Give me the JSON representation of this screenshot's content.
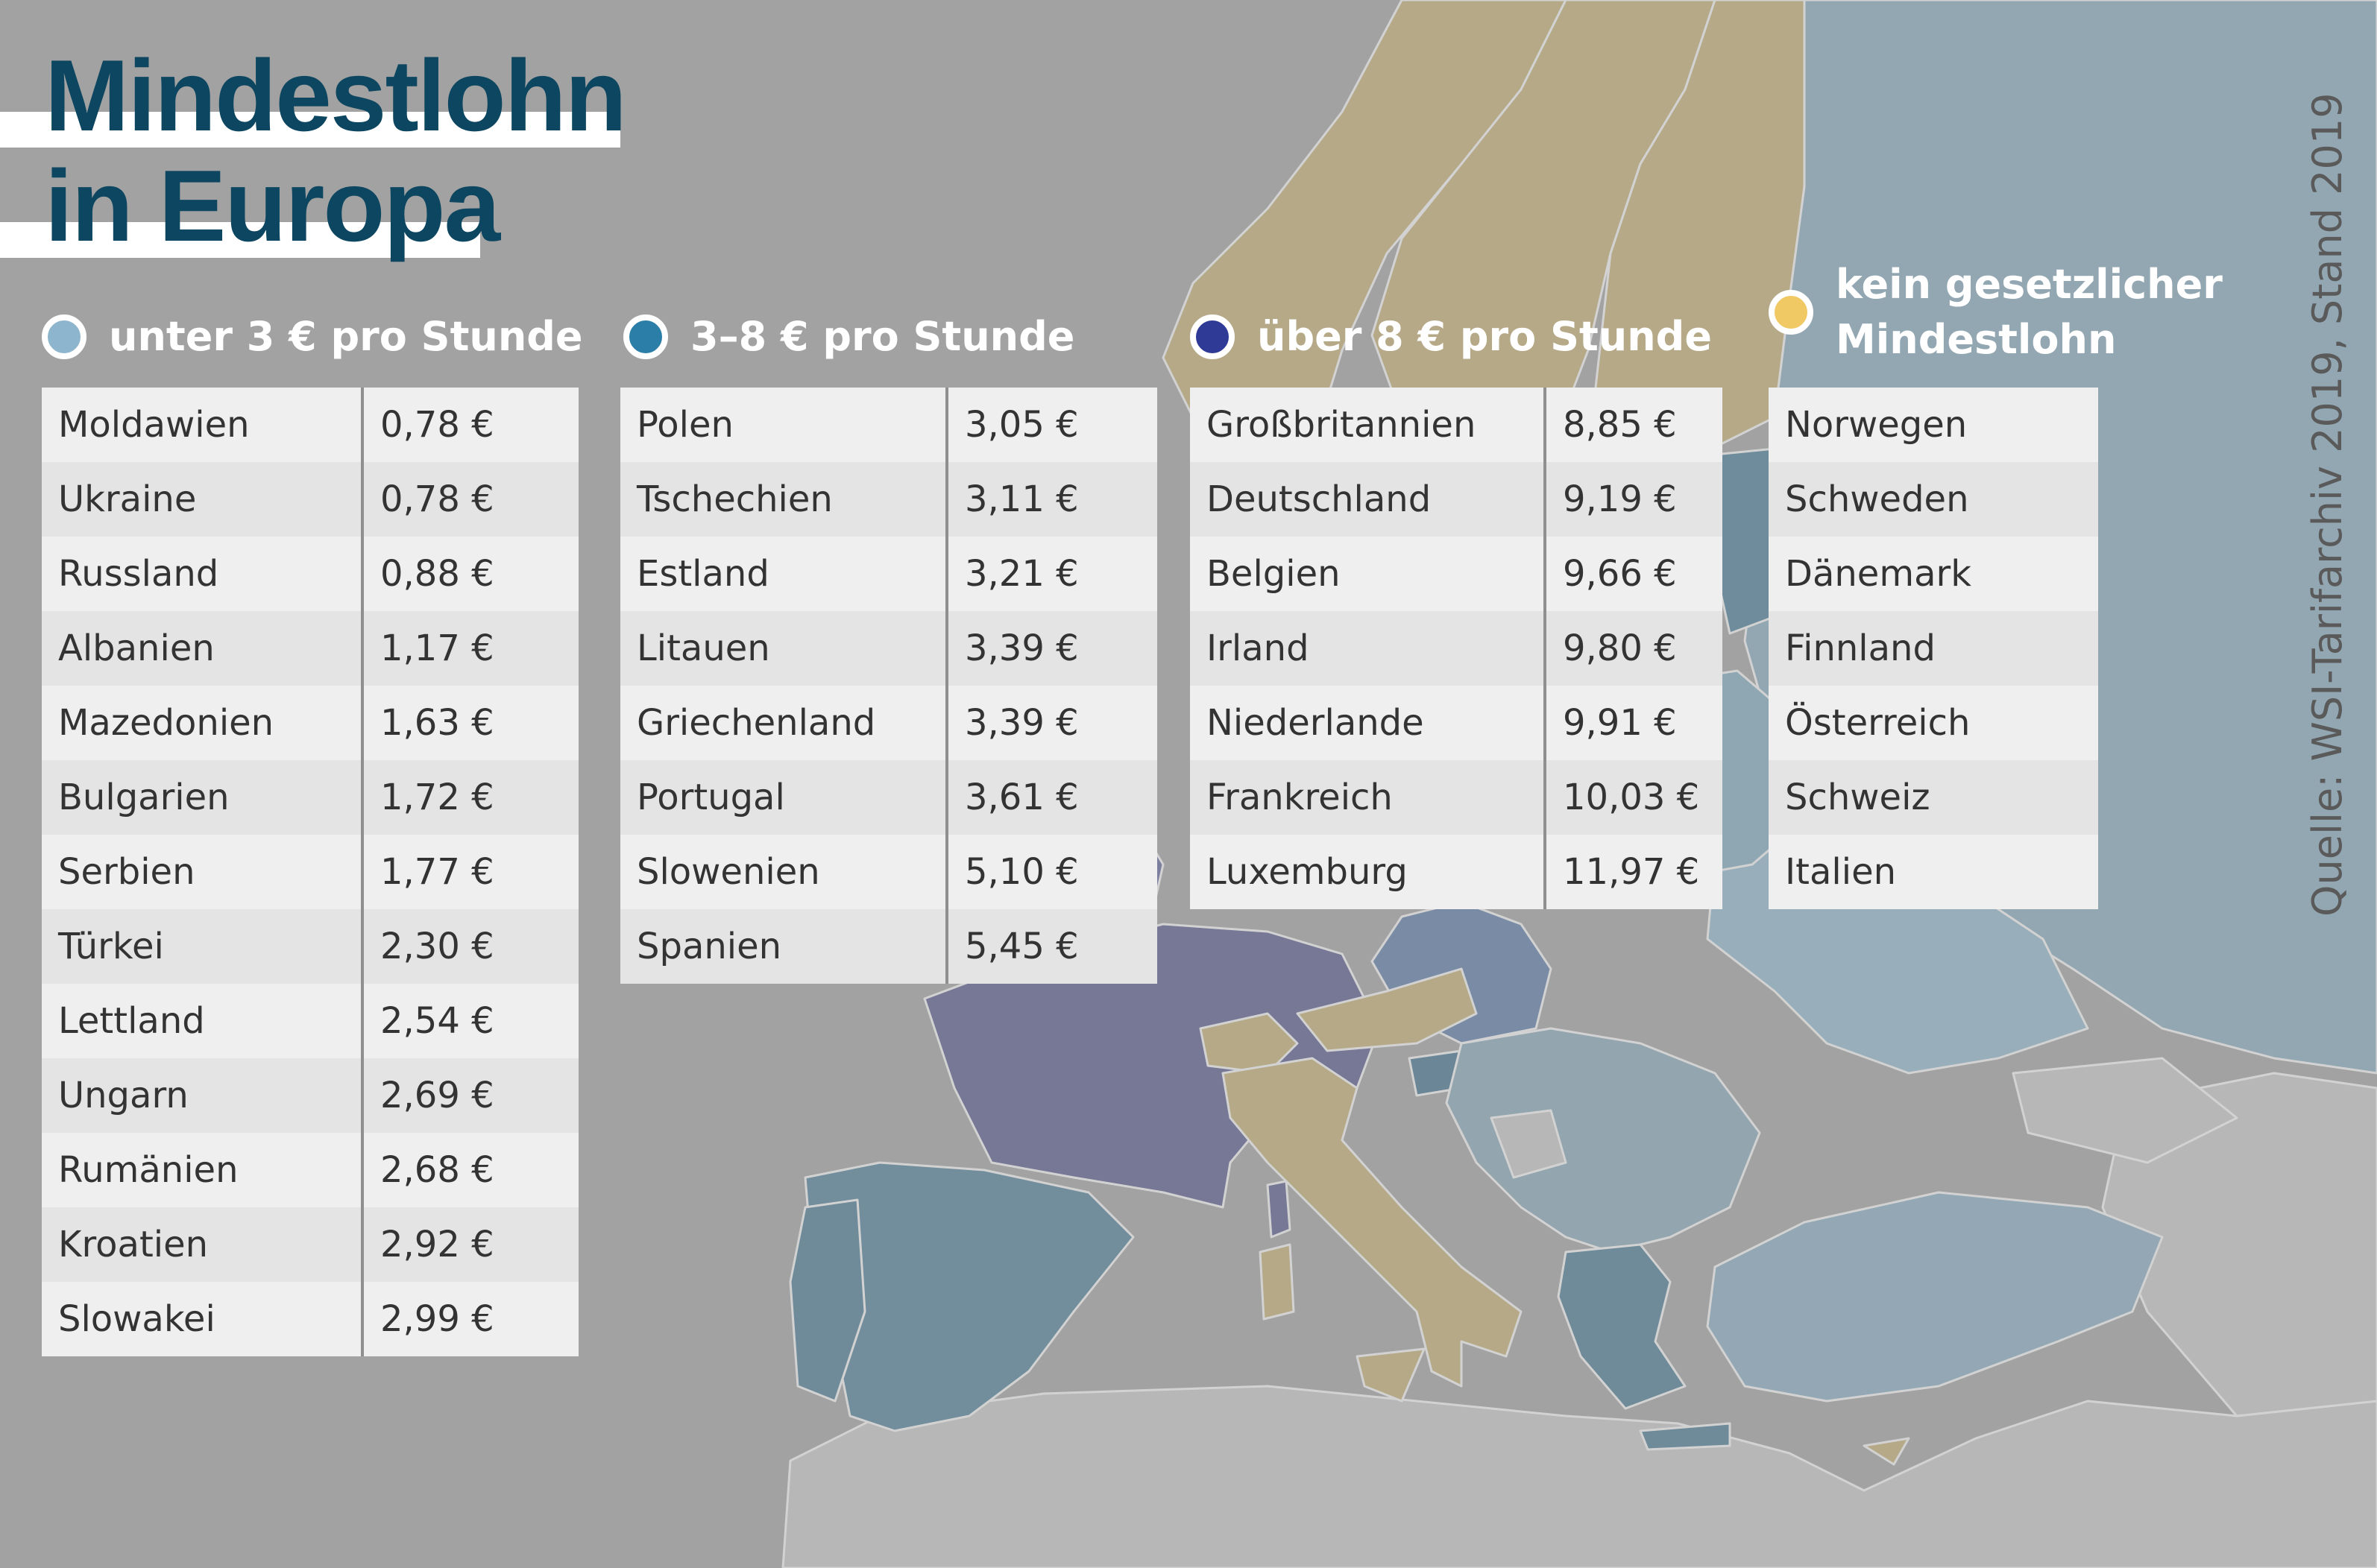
{
  "title": {
    "line1": "Mindestlohn",
    "line2": "in Europa"
  },
  "source": "Quelle: WSI-Tarifarchiv 2019, Stand 2019",
  "colors": {
    "under_3": "#8db5cd",
    "from_3_to_8": "#2b7ea7",
    "over_8": "#2e3a96",
    "none": "#f0c864",
    "title": "#0d4660",
    "map_background": "#a2a2a2"
  },
  "legend": [
    {
      "label": "unter 3 € pro Stunde",
      "color": "#8db5cd"
    },
    {
      "label": "3–8 € pro Stunde",
      "color": "#2b7ea7"
    },
    {
      "label": "über 8 € pro Stunde",
      "color": "#2e3a96"
    },
    {
      "label_line1": "kein gesetzlicher",
      "label_line2": "Mindestlohn",
      "color": "#f0c864"
    }
  ],
  "tables": {
    "under_3": [
      {
        "country": "Moldawien",
        "wage": "0,78 €"
      },
      {
        "country": "Ukraine",
        "wage": "0,78 €"
      },
      {
        "country": "Russland",
        "wage": "0,88 €"
      },
      {
        "country": "Albanien",
        "wage": "1,17 €"
      },
      {
        "country": "Mazedonien",
        "wage": "1,63 €"
      },
      {
        "country": "Bulgarien",
        "wage": "1,72 €"
      },
      {
        "country": "Serbien",
        "wage": "1,77 €"
      },
      {
        "country": "Türkei",
        "wage": "2,30 €"
      },
      {
        "country": "Lettland",
        "wage": "2,54 €"
      },
      {
        "country": "Ungarn",
        "wage": "2,69 €"
      },
      {
        "country": "Rumänien",
        "wage": "2,68 €"
      },
      {
        "country": "Kroatien",
        "wage": "2,92 €"
      },
      {
        "country": "Slowakei",
        "wage": "2,99 €"
      }
    ],
    "from_3_to_8": [
      {
        "country": "Polen",
        "wage": "3,05 €"
      },
      {
        "country": "Tschechien",
        "wage": "3,11 €"
      },
      {
        "country": "Estland",
        "wage": "3,21 €"
      },
      {
        "country": "Litauen",
        "wage": "3,39 €"
      },
      {
        "country": "Griechenland",
        "wage": "3,39 €"
      },
      {
        "country": "Portugal",
        "wage": "3,61 €"
      },
      {
        "country": "Slowenien",
        "wage": "5,10 €"
      },
      {
        "country": "Spanien",
        "wage": "5,45 €"
      }
    ],
    "over_8": [
      {
        "country": "Großbritannien",
        "wage": "8,85 €"
      },
      {
        "country": "Deutschland",
        "wage": "9,19 €"
      },
      {
        "country": "Belgien",
        "wage": "9,66 €"
      },
      {
        "country": "Irland",
        "wage": "9,80 €"
      },
      {
        "country": "Niederlande",
        "wage": "9,91 €"
      },
      {
        "country": "Frankreich",
        "wage": "10,03 €"
      },
      {
        "country": "Luxemburg",
        "wage": "11,97 €"
      }
    ],
    "none": [
      {
        "country": "Norwegen"
      },
      {
        "country": "Schweden"
      },
      {
        "country": "Dänemark"
      },
      {
        "country": "Finnland"
      },
      {
        "country": "Österreich"
      },
      {
        "country": "Schweiz"
      },
      {
        "country": "Italien"
      }
    ]
  }
}
